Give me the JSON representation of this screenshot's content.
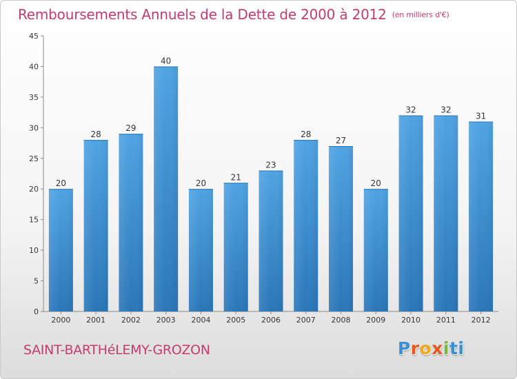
{
  "header": {
    "title": "Remboursements Annuels de la Dette de 2000 à 2012",
    "unit": "(en milliers d'€)"
  },
  "footer": {
    "place": "SAINT-BARTHéLEMY-GROZON",
    "logo_letters": [
      "P",
      "r",
      "o",
      "x",
      "i",
      "t",
      "i"
    ],
    "logo_colors": [
      "#3a8fd6",
      "#e8571e",
      "#f2a81d",
      "#e8571e",
      "#79b93a",
      "#3a8fd6",
      "#3a8fd6"
    ]
  },
  "chart_data": {
    "type": "bar",
    "title": "Remboursements Annuels de la Dette de 2000 à 2012",
    "categories": [
      "2000",
      "2001",
      "2002",
      "2003",
      "2004",
      "2005",
      "2006",
      "2007",
      "2008",
      "2009",
      "2010",
      "2011",
      "2012"
    ],
    "values": [
      20,
      28,
      29,
      40,
      20,
      21,
      23,
      28,
      27,
      20,
      32,
      32,
      31
    ],
    "xlabel": "",
    "ylabel": "",
    "ylim": [
      0,
      45
    ],
    "yticks": [
      0,
      5,
      10,
      15,
      20,
      25,
      30,
      35,
      40,
      45
    ],
    "grid": false,
    "legend": "none",
    "bar_color": "#4fa3e3",
    "bar_color_dark": "#2a76b8",
    "title_color": "#c43b6f"
  }
}
